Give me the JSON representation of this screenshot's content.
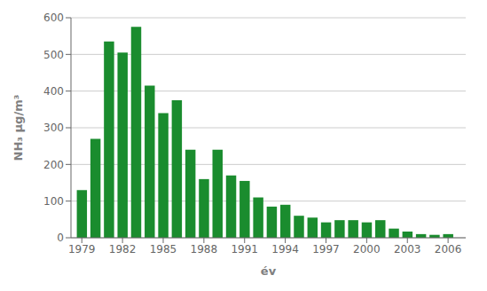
{
  "chart_data": {
    "type": "bar",
    "x": [
      1979,
      1980,
      1981,
      1982,
      1983,
      1984,
      1985,
      1986,
      1987,
      1988,
      1989,
      1990,
      1991,
      1992,
      1993,
      1994,
      1995,
      1996,
      1997,
      1998,
      1999,
      2000,
      2001,
      2002,
      2003,
      2004,
      2005,
      2006
    ],
    "values": [
      130,
      270,
      535,
      505,
      575,
      415,
      340,
      375,
      240,
      160,
      240,
      170,
      155,
      110,
      85,
      90,
      60,
      55,
      42,
      48,
      48,
      42,
      48,
      25,
      17,
      10,
      8,
      10
    ],
    "color": "#1a8c2e",
    "xlabel": "év",
    "ylabel": "NH₃ μg/m³",
    "xlim": [
      1978.2,
      2007.3
    ],
    "ylim": [
      0,
      600
    ],
    "xticks": [
      1979,
      1982,
      1985,
      1988,
      1991,
      1994,
      1997,
      2000,
      2003,
      2006
    ],
    "yticks": [
      0,
      100,
      200,
      300,
      400,
      500,
      600
    ],
    "grid": true
  }
}
